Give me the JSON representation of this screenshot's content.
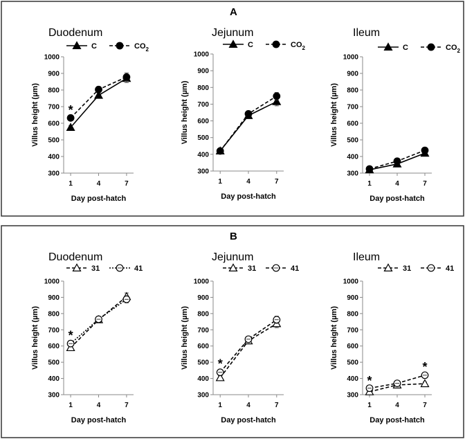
{
  "panels": [
    {
      "label": "A",
      "chart_data": [
        {
          "type": "line",
          "title": "Duodenum",
          "xlabel": "Day post-hatch",
          "ylabel": "Villus height (µm)",
          "categories": [
            "1",
            "4",
            "7"
          ],
          "ylim": [
            300,
            1000
          ],
          "yticks": [
            300,
            400,
            500,
            600,
            700,
            800,
            900,
            1000
          ],
          "legend_labels": [
            "C",
            "CO"
          ],
          "legend_subscript": "2",
          "series": [
            {
              "name": "C",
              "values": [
                575,
                768,
                870
              ],
              "errors": [
                12,
                15,
                25
              ],
              "marker": "triangle-filled",
              "dash": "solid"
            },
            {
              "name": "CO2",
              "values": [
                632,
                803,
                878
              ],
              "errors": [
                15,
                18,
                25
              ],
              "marker": "circle-filled",
              "dash": "dashed"
            }
          ],
          "annotations": [
            {
              "text": "*",
              "category": "1",
              "y": 680
            }
          ]
        },
        {
          "type": "line",
          "title": "Jejunum",
          "xlabel": "Day post-hatch",
          "ylabel": "Villus height (µm)",
          "categories": [
            "1",
            "4",
            "7"
          ],
          "ylim": [
            300,
            1000
          ],
          "yticks": [
            300,
            400,
            500,
            600,
            700,
            800,
            900,
            1000
          ],
          "legend_labels": [
            "C",
            "CO"
          ],
          "legend_subscript": "2",
          "series": [
            {
              "name": "C",
              "values": [
                420,
                632,
                715
              ],
              "errors": [
                10,
                15,
                25
              ],
              "marker": "triangle-filled",
              "dash": "solid"
            },
            {
              "name": "CO2",
              "values": [
                420,
                642,
                748
              ],
              "errors": [
                10,
                15,
                22
              ],
              "marker": "circle-filled",
              "dash": "dashed"
            }
          ],
          "annotations": []
        },
        {
          "type": "line",
          "title": "Ileum",
          "xlabel": "Day post-hatch",
          "ylabel": "Villus height (µm)",
          "categories": [
            "1",
            "4",
            "7"
          ],
          "ylim": [
            300,
            1000
          ],
          "yticks": [
            300,
            400,
            500,
            600,
            700,
            800,
            900,
            1000
          ],
          "legend_labels": [
            "C",
            "CO"
          ],
          "legend_subscript": "2",
          "series": [
            {
              "name": "C",
              "values": [
                320,
                355,
                420
              ],
              "errors": [
                8,
                10,
                12
              ],
              "marker": "triangle-filled",
              "dash": "solid"
            },
            {
              "name": "CO2",
              "values": [
                325,
                372,
                437
              ],
              "errors": [
                8,
                10,
                12
              ],
              "marker": "circle-filled",
              "dash": "dashed"
            }
          ],
          "annotations": []
        }
      ]
    },
    {
      "label": "B",
      "chart_data": [
        {
          "type": "line",
          "title": "Duodenum",
          "xlabel": "Day post-hatch",
          "ylabel": "Villus height (µm)",
          "categories": [
            "1",
            "4",
            "7"
          ],
          "ylim": [
            300,
            1000
          ],
          "yticks": [
            300,
            400,
            500,
            600,
            700,
            800,
            900,
            1000
          ],
          "legend_labels": [
            "31",
            "41"
          ],
          "legend_subscript": "",
          "series": [
            {
              "name": "31",
              "values": [
                590,
                762,
                905
              ],
              "errors": [
                15,
                15,
                22
              ],
              "marker": "triangle-open",
              "dash": "dashed"
            },
            {
              "name": "41",
              "values": [
                615,
                765,
                888
              ],
              "errors": [
                18,
                15,
                22
              ],
              "marker": "circle-open",
              "dash": "dotted"
            }
          ],
          "annotations": [
            {
              "text": "*",
              "category": "1",
              "y": 665
            }
          ]
        },
        {
          "type": "line",
          "title": "Jejunum",
          "xlabel": "Day post-hatch",
          "ylabel": "Villus height (µm)",
          "categories": [
            "1",
            "4",
            "7"
          ],
          "ylim": [
            300,
            1000
          ],
          "yticks": [
            300,
            400,
            500,
            600,
            700,
            800,
            900,
            1000
          ],
          "legend_labels": [
            "31",
            "41"
          ],
          "legend_subscript": "",
          "series": [
            {
              "name": "31",
              "values": [
                405,
                632,
                738
              ],
              "errors": [
                12,
                15,
                25
              ],
              "marker": "triangle-open",
              "dash": "dashed"
            },
            {
              "name": "41",
              "values": [
                438,
                642,
                762
              ],
              "errors": [
                12,
                15,
                22
              ],
              "marker": "circle-open",
              "dash": "dashed"
            }
          ],
          "annotations": [
            {
              "text": "*",
              "category": "1",
              "y": 490
            }
          ]
        },
        {
          "type": "line",
          "title": "Ileum",
          "xlabel": "Day post-hatch",
          "ylabel": "Villus height (µm)",
          "categories": [
            "1",
            "4",
            "7"
          ],
          "ylim": [
            300,
            1000
          ],
          "yticks": [
            300,
            400,
            500,
            600,
            700,
            800,
            900,
            1000
          ],
          "legend_labels": [
            "31",
            "41"
          ],
          "legend_subscript": "",
          "series": [
            {
              "name": "31",
              "values": [
                318,
                360,
                368
              ],
              "errors": [
                8,
                10,
                10
              ],
              "marker": "triangle-open",
              "dash": "dashed"
            },
            {
              "name": "41",
              "values": [
                340,
                370,
                420
              ],
              "errors": [
                8,
                10,
                10
              ],
              "marker": "circle-open",
              "dash": "dashed"
            }
          ],
          "annotations": [
            {
              "text": "*",
              "category": "1",
              "y": 385
            },
            {
              "text": "*",
              "category": "7",
              "y": 470
            }
          ]
        }
      ]
    }
  ]
}
